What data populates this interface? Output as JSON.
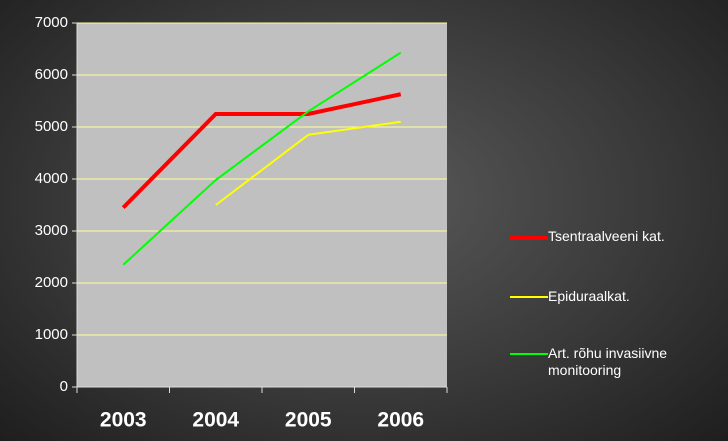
{
  "chart_data": {
    "type": "line",
    "categories": [
      "2003",
      "2004",
      "2005",
      "2006"
    ],
    "series": [
      {
        "name": "Tsentraalveeni kat.",
        "color": "#ff0000",
        "values": [
          3450,
          5250,
          5250,
          5630
        ]
      },
      {
        "name": "Epiduraalkat.",
        "color": "#ffff00",
        "values": [
          null,
          3500,
          4850,
          5100
        ]
      },
      {
        "name": "Art. rõhu invasiivne monitooring",
        "color": "#00ff00",
        "values": [
          2350,
          3980,
          5300,
          6430
        ]
      }
    ],
    "ylim": [
      0,
      7000
    ],
    "yticks": [
      0,
      1000,
      2000,
      3000,
      4000,
      5000,
      6000,
      7000
    ],
    "grid": true,
    "legend": "right"
  }
}
